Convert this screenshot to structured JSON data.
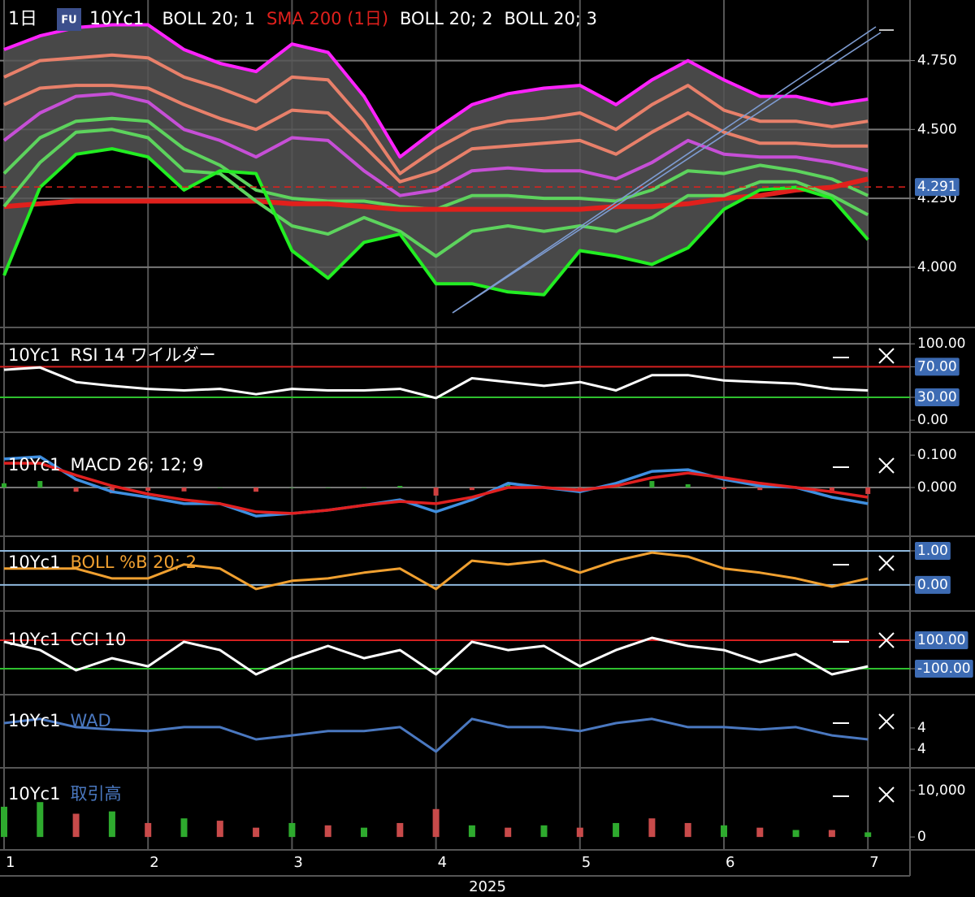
{
  "chart_data": [
    {
      "type": "line",
      "interval": "1日",
      "badge": "FU",
      "symbol": "10Yc1",
      "ylim": [
        3.79,
        4.97
      ],
      "yticks": [
        {
          "value": 4,
          "label": "4.000"
        },
        {
          "value": 4.25,
          "label": "4.250"
        },
        {
          "value": 4.5,
          "label": "4.500"
        },
        {
          "value": 4.75,
          "label": "4.750"
        }
      ],
      "grid": true,
      "last_price": 4.291,
      "last_price_color": "#e0201c",
      "series": [
        {
          "name": "BOLL 20; 1",
          "color": "#ffffff",
          "upper_color": "#e8806a",
          "middle_color": "#c64fd6",
          "lower_color": "#5dd35d",
          "upper": [
            4.59,
            4.65,
            4.66,
            4.66,
            4.65,
            4.59,
            4.54,
            4.5,
            4.57,
            4.56,
            4.44,
            4.31,
            4.35,
            4.43,
            4.44,
            4.45,
            4.46,
            4.41,
            4.49,
            4.56,
            4.49,
            4.45,
            4.45,
            4.44,
            4.44
          ],
          "middle": [
            4.46,
            4.56,
            4.62,
            4.63,
            4.6,
            4.5,
            4.46,
            4.4,
            4.47,
            4.46,
            4.35,
            4.26,
            4.28,
            4.35,
            4.36,
            4.35,
            4.35,
            4.32,
            4.38,
            4.46,
            4.41,
            4.4,
            4.4,
            4.38,
            4.35
          ],
          "lower": [
            4.34,
            4.47,
            4.53,
            4.54,
            4.53,
            4.43,
            4.37,
            4.28,
            4.25,
            4.24,
            4.24,
            4.22,
            4.21,
            4.26,
            4.26,
            4.25,
            4.25,
            4.24,
            4.28,
            4.35,
            4.34,
            4.37,
            4.35,
            4.32,
            4.26
          ]
        },
        {
          "name": "SMA 200 (1日)",
          "color": "#e0201c",
          "values": [
            4.22,
            4.23,
            4.24,
            4.24,
            4.24,
            4.24,
            4.24,
            4.24,
            4.23,
            4.23,
            4.22,
            4.21,
            4.21,
            4.21,
            4.21,
            4.21,
            4.21,
            4.22,
            4.22,
            4.23,
            4.25,
            4.26,
            4.28,
            4.29,
            4.32
          ]
        },
        {
          "name": "BOLL 20; 2",
          "color": "#ffffff",
          "upper_color": "#e8806a",
          "lower_color": "#5dd35d",
          "upper": [
            4.69,
            4.75,
            4.76,
            4.77,
            4.76,
            4.69,
            4.65,
            4.6,
            4.69,
            4.68,
            4.53,
            4.34,
            4.43,
            4.5,
            4.53,
            4.54,
            4.56,
            4.5,
            4.59,
            4.66,
            4.57,
            4.53,
            4.53,
            4.51,
            4.53
          ],
          "lower": [
            4.22,
            4.38,
            4.49,
            4.5,
            4.47,
            4.35,
            4.34,
            4.24,
            4.15,
            4.12,
            4.18,
            4.13,
            4.04,
            4.13,
            4.15,
            4.13,
            4.15,
            4.13,
            4.18,
            4.26,
            4.26,
            4.31,
            4.31,
            4.26,
            4.19
          ]
        },
        {
          "name": "BOLL 20; 3",
          "color": "#ffffff",
          "upper_color": "#ff22ff",
          "lower_color": "#22ee22",
          "fill_color": "#555555",
          "upper": [
            4.79,
            4.84,
            4.87,
            4.88,
            4.88,
            4.79,
            4.74,
            4.71,
            4.81,
            4.78,
            4.62,
            4.4,
            4.5,
            4.59,
            4.63,
            4.65,
            4.66,
            4.59,
            4.68,
            4.75,
            4.68,
            4.62,
            4.62,
            4.59,
            4.61
          ],
          "lower": [
            3.97,
            4.29,
            4.41,
            4.43,
            4.4,
            4.28,
            4.35,
            4.34,
            4.06,
            3.96,
            4.09,
            4.12,
            3.94,
            3.94,
            3.91,
            3.9,
            4.06,
            4.04,
            4.01,
            4.07,
            4.21,
            4.28,
            4.29,
            4.25,
            4.1
          ]
        }
      ]
    },
    {
      "type": "line",
      "symbol": "10Yc1",
      "title": "RSI 14 ワイルダー",
      "title_color": "#ffffff",
      "color": "#ffffff",
      "ylim": [
        -3,
        114
      ],
      "yticks": [
        {
          "value": 0,
          "label": "0.00"
        },
        {
          "value": 30,
          "label": "30.00",
          "line": "#2ec02e",
          "boxed": true
        },
        {
          "value": 70,
          "label": "70.00",
          "line": "#d42020",
          "boxed": true
        },
        {
          "value": 100,
          "label": "100.00",
          "line": "#777777"
        }
      ],
      "values": [
        66,
        69,
        50,
        45,
        41,
        39,
        41,
        34,
        41,
        39,
        39,
        41,
        29,
        55,
        50,
        45,
        50,
        39,
        59,
        59,
        52,
        50,
        48,
        41,
        39
      ]
    },
    {
      "type": "macd",
      "symbol": "10Yc1",
      "title": "MACD 26; 12; 9",
      "title_color": "#ffffff",
      "ylim": [
        -0.138,
        0.138
      ],
      "yticks": [
        {
          "value": 0,
          "label": "0.000",
          "line": "#777777"
        },
        {
          "value": 0.1,
          "label": "0.100"
        }
      ],
      "histogram": {
        "up_color": "#2eaa2e",
        "down_color": "#d04040",
        "values": [
          0.013,
          0.02,
          -0.013,
          -0.018,
          -0.01,
          -0.012,
          0,
          -0.013,
          0,
          0,
          0,
          0.005,
          -0.025,
          -0.008,
          0.013,
          0,
          -0.005,
          0.008,
          0.02,
          0.01,
          -0.005,
          -0.008,
          0,
          -0.017,
          -0.02
        ]
      },
      "macd": {
        "color": "#3f8fe0",
        "values": [
          0.088,
          0.095,
          0.025,
          -0.013,
          -0.03,
          -0.05,
          -0.05,
          -0.088,
          -0.08,
          -0.07,
          -0.055,
          -0.038,
          -0.075,
          -0.038,
          0.013,
          0,
          -0.013,
          0.013,
          0.05,
          0.055,
          0.025,
          0.005,
          0,
          -0.03,
          -0.05
        ]
      },
      "signal": {
        "color": "#e02020",
        "values": [
          0.075,
          0.075,
          0.038,
          0.005,
          -0.02,
          -0.038,
          -0.05,
          -0.075,
          -0.08,
          -0.07,
          -0.055,
          -0.043,
          -0.05,
          -0.03,
          0,
          0,
          -0.008,
          0.005,
          0.03,
          0.045,
          0.03,
          0.013,
          0,
          -0.013,
          -0.03
        ]
      }
    },
    {
      "type": "line",
      "symbol": "10Yc1",
      "title": "BOLL %B 20; 2",
      "title_color": "#f0a030",
      "color": "#f0a030",
      "ylim": [
        -0.6,
        1.31
      ],
      "yticks": [
        {
          "value": 0,
          "label": "0.00",
          "line": "#8fb8dd",
          "boxed": true
        },
        {
          "value": 1,
          "label": "1.00",
          "line": "#8fb8dd",
          "boxed": true
        }
      ],
      "values": [
        0.48,
        0.48,
        0.48,
        0.19,
        0.19,
        0.6,
        0.48,
        -0.12,
        0.12,
        0.19,
        0.36,
        0.48,
        -0.12,
        0.71,
        0.6,
        0.71,
        0.36,
        0.71,
        0.95,
        0.83,
        0.48,
        0.36,
        0.19,
        -0.05,
        0.19
      ]
    },
    {
      "type": "line",
      "symbol": "10Yc1",
      "title": "CCI 10",
      "title_color": "#ffffff",
      "color": "#ffffff",
      "ylim": [
        -254,
        260
      ],
      "yticks": [
        {
          "value": -100,
          "label": "-100.00",
          "line": "#2ec02e",
          "boxed": true
        },
        {
          "value": 100,
          "label": "100.00",
          "line": "#d42020",
          "boxed": true
        }
      ],
      "values": [
        89,
        31,
        -111,
        -26,
        -83,
        89,
        31,
        -140,
        -26,
        60,
        -26,
        31,
        -140,
        89,
        31,
        60,
        -83,
        31,
        117,
        60,
        31,
        -54,
        3,
        -140,
        -83
      ]
    },
    {
      "type": "line",
      "symbol": "10Yc1",
      "title": "WAD",
      "title_color": "#4a78c0",
      "color": "#4a78c0",
      "ylim": [
        3.05,
        5.5
      ],
      "yticks": [
        {
          "value": 3.6,
          "label": "4"
        },
        {
          "value": 4.4,
          "label": "4"
        }
      ],
      "values": [
        4.58,
        4.74,
        4.43,
        4.34,
        4.28,
        4.43,
        4.43,
        3.97,
        4.12,
        4.28,
        4.28,
        4.43,
        3.51,
        4.74,
        4.43,
        4.43,
        4.28,
        4.58,
        4.74,
        4.43,
        4.43,
        4.34,
        4.43,
        4.12,
        3.97
      ]
    },
    {
      "type": "bar",
      "symbol": "10Yc1",
      "title": "取引高",
      "title_color": "#4a78c0",
      "ylim": [
        -2600,
        14000
      ],
      "yticks": [
        0,
        {
          "value": 10000,
          "label": "10,000"
        }
      ],
      "categories": [
        "1",
        null,
        null,
        null,
        "2",
        null,
        null,
        null,
        "3",
        null,
        null,
        null,
        "4",
        null,
        null,
        null,
        "5",
        null,
        null,
        null,
        "6",
        null,
        null,
        null,
        "7"
      ],
      "xlabel": "2025",
      "values": [
        6500,
        7500,
        5000,
        5500,
        3000,
        4000,
        3500,
        2000,
        3000,
        2500,
        2000,
        3000,
        6000,
        2500,
        2000,
        2500,
        2000,
        3000,
        4000,
        3000,
        2500,
        2000,
        1500,
        1500,
        1000
      ],
      "bar_colors": [
        "#2eaa2e",
        "#2eaa2e",
        "#c84a4a",
        "#2eaa2e",
        "#c84a4a",
        "#2eaa2e",
        "#c84a4a",
        "#c84a4a",
        "#2eaa2e",
        "#c84a4a",
        "#2eaa2e",
        "#c84a4a",
        "#c84a4a",
        "#2eaa2e",
        "#c84a4a",
        "#2eaa2e",
        "#c84a4a",
        "#2eaa2e",
        "#c84a4a",
        "#c84a4a",
        "#2eaa2e",
        "#c84a4a",
        "#2eaa2e",
        "#c84a4a",
        "#2eaa2e"
      ]
    }
  ]
}
